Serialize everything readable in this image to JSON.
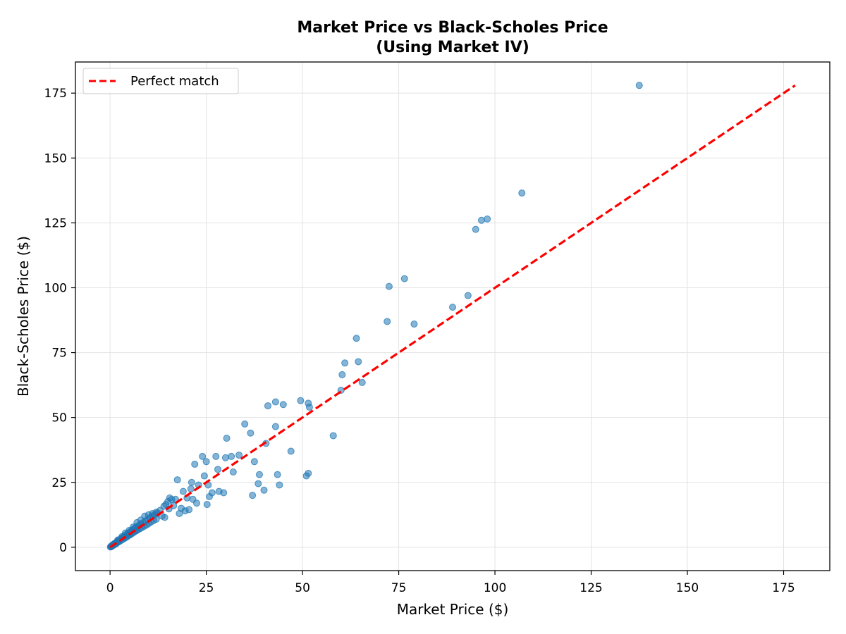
{
  "chart_data": {
    "type": "scatter",
    "title_lines": [
      "Market Price vs Black-Scholes Price",
      "(Using Market IV)"
    ],
    "xlabel": "Market Price ($)",
    "ylabel": "Black-Scholes Price ($)",
    "xlim": [
      -9,
      187
    ],
    "ylim": [
      -9,
      187
    ],
    "xticks": [
      0,
      25,
      50,
      75,
      100,
      125,
      150,
      175
    ],
    "yticks": [
      0,
      25,
      50,
      75,
      100,
      125,
      150,
      175
    ],
    "grid": true,
    "legend_position": "top-left",
    "colors": {
      "points": "#1f77b4",
      "line": "#ff0000"
    },
    "reference_line": {
      "name": "Perfect match",
      "style": "dashed",
      "x": [
        0,
        178
      ],
      "y": [
        0,
        178
      ]
    },
    "series": [
      {
        "points": [
          [
            0.1,
            0.1
          ],
          [
            0.2,
            0.3
          ],
          [
            0.3,
            0.2
          ],
          [
            0.4,
            0.5
          ],
          [
            0.5,
            0.4
          ],
          [
            0.6,
            0.8
          ],
          [
            0.7,
            0.7
          ],
          [
            0.8,
            1.0
          ],
          [
            0.9,
            0.8
          ],
          [
            1.0,
            1.2
          ],
          [
            1.1,
            1.0
          ],
          [
            1.2,
            1.5
          ],
          [
            1.3,
            1.3
          ],
          [
            1.5,
            1.7
          ],
          [
            1.6,
            1.4
          ],
          [
            1.8,
            2.1
          ],
          [
            2.0,
            1.9
          ],
          [
            2.2,
            2.6
          ],
          [
            2.4,
            2.2
          ],
          [
            2.6,
            3.0
          ],
          [
            2.8,
            2.6
          ],
          [
            3.0,
            3.5
          ],
          [
            3.2,
            3.0
          ],
          [
            3.4,
            3.9
          ],
          [
            3.6,
            3.3
          ],
          [
            3.8,
            4.4
          ],
          [
            4.0,
            3.7
          ],
          [
            4.2,
            4.8
          ],
          [
            4.4,
            4.0
          ],
          [
            4.6,
            5.3
          ],
          [
            4.8,
            4.5
          ],
          [
            5.0,
            5.7
          ],
          [
            5.2,
            4.8
          ],
          [
            5.4,
            6.2
          ],
          [
            5.6,
            5.2
          ],
          [
            5.8,
            6.6
          ],
          [
            6.0,
            5.6
          ],
          [
            6.2,
            7.1
          ],
          [
            6.4,
            6.0
          ],
          [
            6.6,
            7.6
          ],
          [
            6.8,
            6.3
          ],
          [
            7.0,
            8.0
          ],
          [
            7.2,
            6.7
          ],
          [
            7.5,
            8.4
          ],
          [
            7.8,
            7.2
          ],
          [
            8.0,
            9.0
          ],
          [
            8.3,
            7.6
          ],
          [
            8.6,
            9.5
          ],
          [
            8.9,
            8.1
          ],
          [
            9.2,
            10.1
          ],
          [
            9.5,
            8.6
          ],
          [
            9.8,
            10.8
          ],
          [
            10.1,
            9.2
          ],
          [
            10.4,
            11.4
          ],
          [
            10.7,
            9.8
          ],
          [
            11.0,
            12.0
          ],
          [
            11.3,
            10.3
          ],
          [
            11.6,
            12.5
          ],
          [
            12.0,
            10.8
          ],
          [
            12.3,
            13.2
          ],
          [
            2.0,
            2.8
          ],
          [
            3.1,
            4.1
          ],
          [
            4.0,
            5.5
          ],
          [
            5.0,
            6.5
          ],
          [
            6.0,
            7.8
          ],
          [
            7.0,
            9.5
          ],
          [
            8.0,
            10.5
          ],
          [
            9.0,
            12.0
          ],
          [
            10.0,
            12.5
          ],
          [
            11.0,
            13.0
          ],
          [
            12.0,
            13.5
          ],
          [
            13.0,
            14.2
          ],
          [
            14.0,
            15.8
          ],
          [
            15.0,
            17.6
          ],
          [
            16.0,
            18.4
          ],
          [
            14.5,
            16.5
          ],
          [
            15.5,
            19.0
          ],
          [
            13.5,
            12.0
          ],
          [
            14.2,
            11.5
          ],
          [
            15.3,
            14.8
          ],
          [
            16.5,
            16.0
          ],
          [
            17.0,
            18.5
          ],
          [
            17.5,
            26.0
          ],
          [
            18.0,
            13.0
          ],
          [
            18.5,
            15.0
          ],
          [
            19.0,
            21.5
          ],
          [
            19.5,
            14.0
          ],
          [
            20.0,
            19.0
          ],
          [
            20.5,
            14.5
          ],
          [
            21.0,
            22.5
          ],
          [
            21.2,
            25.0
          ],
          [
            21.5,
            18.5
          ],
          [
            22.0,
            32.0
          ],
          [
            22.5,
            17.0
          ],
          [
            23.0,
            24.0
          ],
          [
            24.0,
            35.0
          ],
          [
            24.5,
            27.5
          ],
          [
            25.0,
            33.0
          ],
          [
            25.2,
            16.5
          ],
          [
            25.5,
            24.0
          ],
          [
            25.8,
            19.5
          ],
          [
            26.5,
            21.0
          ],
          [
            27.5,
            35.0
          ],
          [
            28.0,
            30.0
          ],
          [
            28.3,
            21.5
          ],
          [
            29.5,
            21.0
          ],
          [
            30.0,
            34.5
          ],
          [
            30.3,
            42.0
          ],
          [
            31.5,
            35.0
          ],
          [
            32.0,
            29.0
          ],
          [
            33.5,
            35.5
          ],
          [
            35.0,
            47.5
          ],
          [
            36.5,
            44.0
          ],
          [
            37.0,
            20.0
          ],
          [
            37.5,
            33.0
          ],
          [
            38.5,
            24.5
          ],
          [
            38.8,
            28.0
          ],
          [
            40.0,
            22.0
          ],
          [
            40.5,
            40.0
          ],
          [
            41.0,
            54.5
          ],
          [
            43.0,
            46.5
          ],
          [
            43.0,
            56.0
          ],
          [
            43.5,
            28.0
          ],
          [
            44.0,
            24.0
          ],
          [
            45.0,
            55.0
          ],
          [
            47.0,
            37.0
          ],
          [
            49.5,
            56.5
          ],
          [
            51.0,
            27.5
          ],
          [
            51.5,
            28.5
          ],
          [
            51.5,
            55.5
          ],
          [
            51.8,
            54.0
          ],
          [
            58.0,
            43.0
          ],
          [
            60.0,
            60.5
          ],
          [
            60.3,
            66.5
          ],
          [
            61.0,
            71.0
          ],
          [
            64.0,
            80.5
          ],
          [
            64.5,
            71.5
          ],
          [
            65.5,
            63.5
          ],
          [
            72.0,
            87.0
          ],
          [
            72.5,
            100.5
          ],
          [
            76.5,
            103.5
          ],
          [
            79.0,
            86.0
          ],
          [
            89.0,
            92.5
          ],
          [
            93.0,
            97.0
          ],
          [
            95.0,
            122.5
          ],
          [
            96.5,
            126.0
          ],
          [
            98.0,
            126.5
          ],
          [
            107.0,
            136.5
          ],
          [
            137.5,
            178.0
          ]
        ]
      }
    ]
  }
}
